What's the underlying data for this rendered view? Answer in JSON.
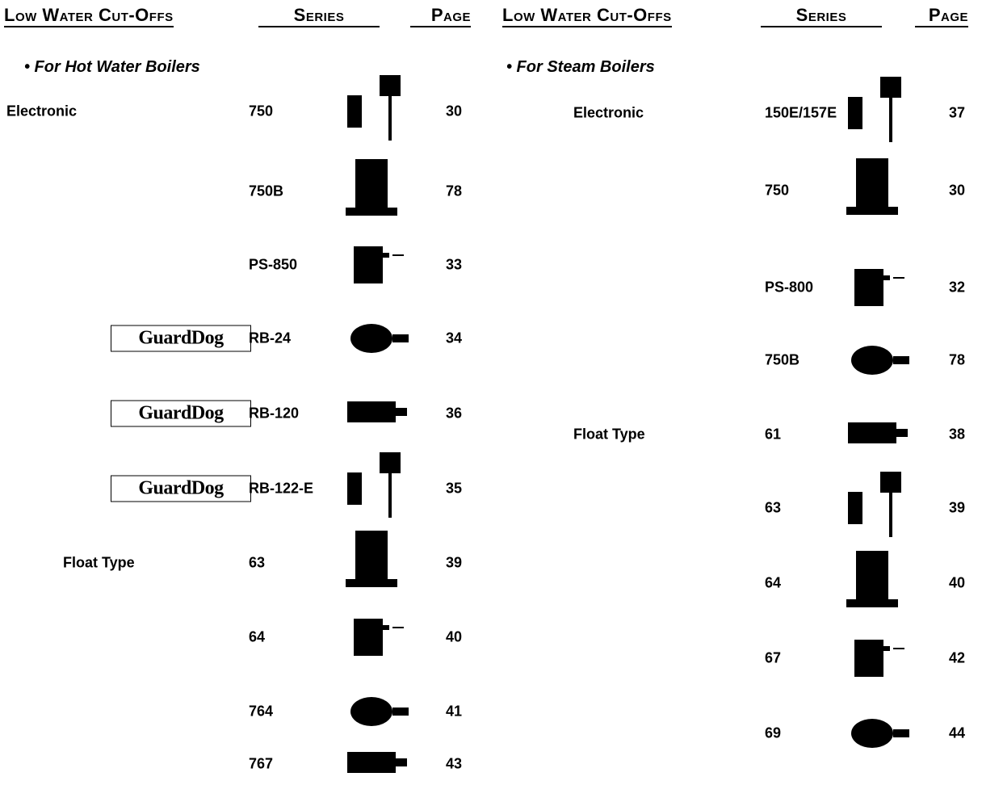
{
  "columns": [
    {
      "header": {
        "title": "Low Water Cut-Offs",
        "series": "Series",
        "page": "Page"
      },
      "subtitle": "• For Hot Water Boilers",
      "groups": [
        {
          "label": "Electronic",
          "items": [
            {
              "series": "750",
              "page": "30"
            },
            {
              "series": "750B",
              "page": "78"
            },
            {
              "series": "PS-850",
              "page": "33"
            },
            {
              "logo": "GuardDog",
              "series": "RB-24",
              "page": "34"
            },
            {
              "logo": "GuardDog",
              "series": "RB-120",
              "page": "36"
            },
            {
              "logo": "GuardDog",
              "series": "RB-122-E",
              "page": "35"
            }
          ]
        },
        {
          "label": "Float Type",
          "items": [
            {
              "series": "63",
              "page": "39"
            },
            {
              "series": "64",
              "page": "40"
            },
            {
              "series": "764",
              "page": "41"
            },
            {
              "series": "767",
              "page": "43"
            }
          ]
        }
      ]
    },
    {
      "header": {
        "title": "Low Water Cut-Offs",
        "series": "Series",
        "page": "Page"
      },
      "subtitle": "• For Steam Boilers",
      "groups": [
        {
          "label": "Electronic",
          "items": [
            {
              "series": "150E/157E",
              "page": "37"
            },
            {
              "series": "750",
              "page": "30"
            },
            {
              "series": "PS-800",
              "page": "32"
            },
            {
              "series": "750B",
              "page": "78"
            }
          ]
        },
        {
          "label": "Float Type",
          "items": [
            {
              "series": "61",
              "page": "38"
            },
            {
              "series": "63",
              "page": "39"
            },
            {
              "series": "64",
              "page": "40"
            },
            {
              "series": "67",
              "page": "42"
            },
            {
              "series": "69",
              "page": "44"
            }
          ]
        }
      ]
    }
  ]
}
